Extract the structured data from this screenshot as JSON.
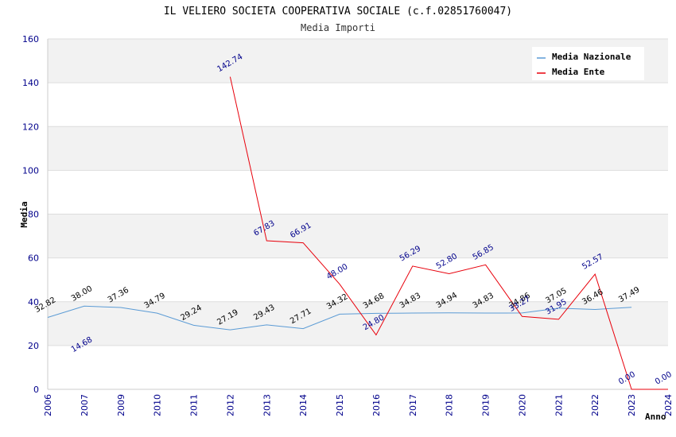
{
  "chart_data": {
    "type": "line",
    "title": "IL VELIERO SOCIETA COOPERATIVA SOCIALE (c.f.02851760047)",
    "subtitle": "Media Importi",
    "xlabel": "Anno",
    "ylabel": "Media",
    "ylim": [
      0,
      160
    ],
    "yticks": [
      0,
      20,
      40,
      60,
      80,
      100,
      120,
      140,
      160
    ],
    "categories": [
      "2006",
      "2007",
      "2009",
      "2010",
      "2011",
      "2012",
      "2013",
      "2014",
      "2015",
      "2016",
      "2017",
      "2018",
      "2019",
      "2020",
      "2021",
      "2022",
      "2023",
      "2024"
    ],
    "legend_position": "top-right",
    "grid": true,
    "series": [
      {
        "name": "Media Nazionale",
        "color": "#5b9bd5",
        "values": [
          32.82,
          38.0,
          37.36,
          34.79,
          29.24,
          27.19,
          29.43,
          27.71,
          34.32,
          34.68,
          34.83,
          34.94,
          34.83,
          34.86,
          37.05,
          36.46,
          37.49,
          null
        ],
        "labels": [
          "32.82",
          "38.00",
          "37.36",
          "34.79",
          "29.24",
          "27.19",
          "29.43",
          "27.71",
          "34.32",
          "34.68",
          "34.83",
          "34.94",
          "34.83",
          "34.86",
          "37.05",
          "36.46",
          "37.49",
          ""
        ]
      },
      {
        "name": "Media Ente",
        "color": "#e8000b",
        "values": [
          null,
          14.68,
          null,
          null,
          null,
          142.74,
          67.83,
          66.91,
          48.0,
          24.8,
          56.29,
          52.8,
          56.85,
          33.27,
          31.95,
          52.57,
          0.0,
          0.0
        ],
        "labels": [
          "",
          "14.68",
          "",
          "",
          "",
          "142.74",
          "67.83",
          "66.91",
          "48.00",
          "24.80",
          "56.29",
          "52.80",
          "56.85",
          "33.27",
          "31.95",
          "52.57",
          "0.00",
          "0.00"
        ]
      }
    ]
  }
}
